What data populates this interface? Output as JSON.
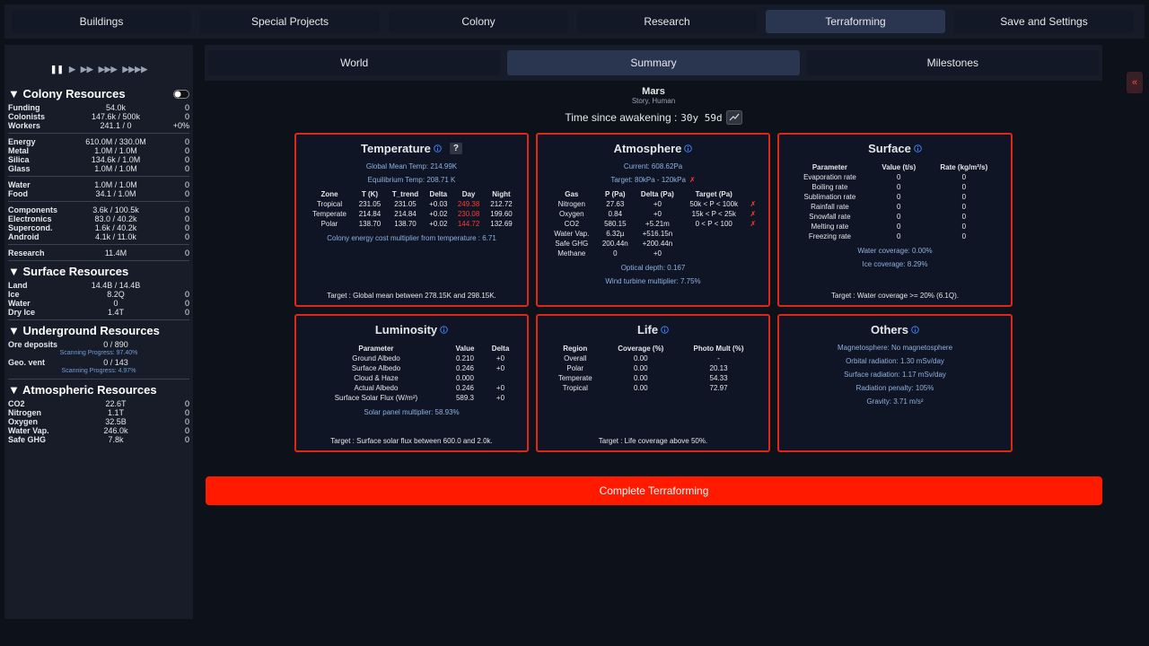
{
  "nav": {
    "tabs": [
      "Buildings",
      "Special Projects",
      "Colony",
      "Research",
      "Terraforming",
      "Save and Settings"
    ]
  },
  "sidebar": {
    "speed": [
      "❚❚",
      "▶",
      "▶▶",
      "▶▶▶",
      "▶▶▶▶"
    ],
    "sections": [
      {
        "title": "▼ Colony Resources",
        "groups": [
          [
            {
              "name": "Funding",
              "value": "54.0k",
              "rate": "0"
            },
            {
              "name": "Colonists",
              "value": "147.6k / 500k",
              "rate": "0"
            },
            {
              "name": "Workers",
              "value": "241.1 / 0",
              "rate": "+0%"
            }
          ],
          [
            {
              "name": "Energy",
              "value": "610.0M / 330.0M",
              "rate": "0"
            },
            {
              "name": "Metal",
              "value": "1.0M / 1.0M",
              "rate": "0"
            },
            {
              "name": "Silica",
              "value": "134.6k / 1.0M",
              "rate": "0"
            },
            {
              "name": "Glass",
              "value": "1.0M / 1.0M",
              "rate": "0"
            }
          ],
          [
            {
              "name": "Water",
              "value": "1.0M / 1.0M",
              "rate": "0"
            },
            {
              "name": "Food",
              "value": "34.1 / 1.0M",
              "rate": "0"
            }
          ],
          [
            {
              "name": "Components",
              "value": "3.6k / 100.5k",
              "rate": "0"
            },
            {
              "name": "Electronics",
              "value": "83.0 / 40.2k",
              "rate": "0"
            },
            {
              "name": "Supercond.",
              "value": "1.6k / 40.2k",
              "rate": "0"
            },
            {
              "name": "Android",
              "value": "4.1k / 11.0k",
              "rate": "0"
            }
          ],
          [
            {
              "name": "Research",
              "value": "11.4M",
              "rate": "0"
            }
          ]
        ]
      },
      {
        "title": "▼ Surface Resources",
        "groups": [
          [
            {
              "name": "Land",
              "value": "14.4B / 14.4B"
            },
            {
              "name": "Ice",
              "value": "8.2Q",
              "rate": "0"
            },
            {
              "name": "Water",
              "value": "0",
              "rate": "0"
            },
            {
              "name": "Dry Ice",
              "value": "1.4T",
              "rate": "0"
            }
          ]
        ]
      },
      {
        "title": "▼ Underground Resources",
        "groups": [
          [
            {
              "name": "Ore deposits",
              "value": "0 / 890",
              "note": "Scanning Progress: 97.40%"
            },
            {
              "name": "Geo. vent",
              "value": "0 / 143",
              "note": "Scanning Progress: 4.97%"
            }
          ]
        ]
      },
      {
        "title": "▼ Atmospheric Resources",
        "groups": [
          [
            {
              "name": "CO2",
              "value": "22.6T",
              "rate": "0"
            },
            {
              "name": "Nitrogen",
              "value": "1.1T",
              "rate": "0"
            },
            {
              "name": "Oxygen",
              "value": "32.5B",
              "rate": "0"
            },
            {
              "name": "Water Vap.",
              "value": "246.0k",
              "rate": "0"
            },
            {
              "name": "Safe GHG",
              "value": "7.8k",
              "rate": "0"
            }
          ]
        ]
      }
    ]
  },
  "subtabs": [
    "World",
    "Summary",
    "Milestones"
  ],
  "planet": {
    "name": "Mars",
    "subtitle": "Story, Human",
    "time_label": "Time since awakening :",
    "time": "30y 59d"
  },
  "cards": [
    {
      "title": "Temperature",
      "help": "?",
      "lines_before": [
        "Global Mean Temp: 214.99K",
        "Equilibrium Temp: 208.71 K"
      ],
      "table": {
        "header": [
          "Zone",
          "T (K)",
          "T_trend",
          "Delta",
          "Day",
          "Night"
        ],
        "rows": [
          [
            "Tropical",
            "231.05",
            "231.05",
            "+0.03",
            "249.38",
            "212.72"
          ],
          [
            "Temperate",
            "214.84",
            "214.84",
            "+0.02",
            "230.08",
            "199.60"
          ],
          [
            "Polar",
            "138.70",
            "138.70",
            "+0.02",
            "144.72",
            "132.69"
          ]
        ]
      },
      "lines_after": [
        "Colony energy cost multiplier from temperature : 6.71"
      ],
      "target": "Target : Global mean between 278.15K and 298.15K."
    },
    {
      "title": "Atmosphere",
      "lines_before": [
        "Current: 608.62Pa",
        {
          "text": "Target: 80kPa - 120kPa",
          "mark": "✗"
        }
      ],
      "table": {
        "header": [
          "Gas",
          "P (Pa)",
          "Delta (Pa)",
          "Target (Pa)"
        ],
        "rows": [
          [
            "Nitrogen",
            "27.63",
            "+0",
            "50k < P < 100k",
            "✗"
          ],
          [
            "Oxygen",
            "0.84",
            "+0",
            "15k < P < 25k",
            "✗"
          ],
          [
            "CO2",
            "580.15",
            "+5.21m",
            "0 < P < 100",
            "✗"
          ],
          [
            "Water Vap.",
            "6.32µ",
            "+516.15n"
          ],
          [
            "Safe GHG",
            "200.44n",
            "+200.44n"
          ],
          [
            "Methane",
            "0",
            "+0"
          ]
        ]
      },
      "lines_after": [
        "Optical depth: 0.167",
        "Wind turbine multiplier: 7.75%"
      ]
    },
    {
      "title": "Surface",
      "table": {
        "header": [
          "Parameter",
          "Value (t/s)",
          "Rate (kg/m²/s)"
        ],
        "rows": [
          [
            "Evaporation rate",
            "0",
            "0"
          ],
          [
            "Boiling rate",
            "0",
            "0"
          ],
          [
            "Sublimation rate",
            "0",
            "0"
          ],
          [
            "Rainfall rate",
            "0",
            "0"
          ],
          [
            "Snowfall rate",
            "0",
            "0"
          ],
          [
            "Melting rate",
            "0",
            "0"
          ],
          [
            "Freezing rate",
            "0",
            "0"
          ]
        ]
      },
      "lines_after": [
        "Water coverage: 0.00%",
        "Ice coverage: 8.29%"
      ],
      "target": "Target : Water coverage >= 20% (6.1Q)."
    },
    {
      "title": "Luminosity",
      "table": {
        "header": [
          "Parameter",
          "Value",
          "Delta"
        ],
        "rows": [
          [
            "Ground Albedo",
            "0.210",
            "+0"
          ],
          [
            "Surface Albedo",
            "0.246",
            "+0"
          ],
          [
            "Cloud & Haze",
            "0.000"
          ],
          [
            "Actual Albedo",
            "0.246",
            "+0"
          ],
          [
            "Surface Solar Flux (W/m²)",
            "589.3",
            "+0"
          ]
        ]
      },
      "lines_after": [
        "Solar panel multiplier: 58.93%"
      ],
      "target": "Target : Surface solar flux between 600.0 and 2.0k."
    },
    {
      "title": "Life",
      "table": {
        "header": [
          "Region",
          "Coverage (%)",
          "Photo Mult (%)"
        ],
        "rows": [
          [
            "Overall",
            "0.00",
            "-"
          ],
          [
            "Polar",
            "0.00",
            "20.13"
          ],
          [
            "Temperate",
            "0.00",
            "54.33"
          ],
          [
            "Tropical",
            "0.00",
            "72.97"
          ]
        ]
      },
      "target": "Target : Life coverage above 50%."
    },
    {
      "title": "Others",
      "lines_after": [
        "Magnetosphere: No magnetosphere",
        "Orbital radiation: 1.30 mSv/day",
        "Surface radiation: 1.17 mSv/day",
        "Radiation penalty: 105%",
        "Gravity: 3.71 m/s²"
      ]
    }
  ],
  "button": "Complete Terraforming",
  "collapse": "«"
}
